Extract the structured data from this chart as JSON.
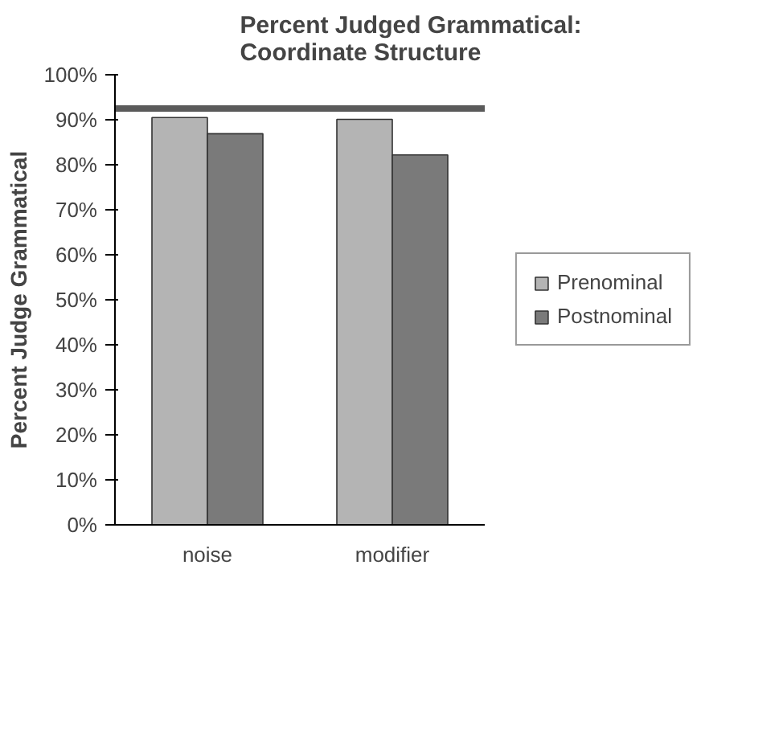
{
  "chart_data": {
    "type": "bar",
    "title": "Percent Judged Grammatical:\nCoordinate Structure",
    "ylabel": "Percent Judge Grammatical",
    "categories": [
      "noise",
      "modifier"
    ],
    "series": [
      {
        "name": "Prenominal",
        "color": "#b4b4b4",
        "values": [
          90.5,
          90.1
        ]
      },
      {
        "name": "Postnominal",
        "color": "#7a7a7a",
        "values": [
          86.9,
          82.2
        ]
      }
    ],
    "ylim": [
      0,
      100
    ],
    "yticks": [
      {
        "value": 0,
        "label": "0%"
      },
      {
        "value": 10,
        "label": "10%"
      },
      {
        "value": 20,
        "label": "20%"
      },
      {
        "value": 30,
        "label": "30%"
      },
      {
        "value": 40,
        "label": "40%"
      },
      {
        "value": 50,
        "label": "50%"
      },
      {
        "value": 60,
        "label": "60%"
      },
      {
        "value": 70,
        "label": "70%"
      },
      {
        "value": 80,
        "label": "80%"
      },
      {
        "value": 90,
        "label": "90%"
      },
      {
        "value": 100,
        "label": "100%"
      }
    ],
    "ref_lines": [
      {
        "axis": "y",
        "value": 92.5,
        "color": "#5a5a5a"
      }
    ],
    "grid": false,
    "legend": "right"
  }
}
